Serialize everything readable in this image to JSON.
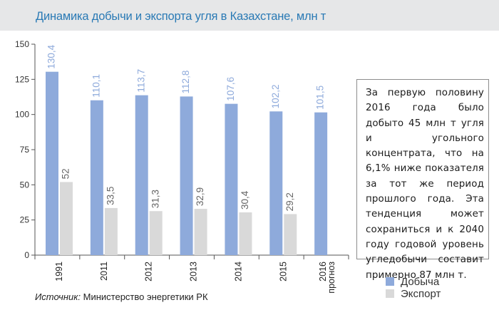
{
  "title": "Динамика добычи и экспорта угля в Казахстане, млн т",
  "note": "За первую половину 2016 года было добыто 45 млн т угля и угольного концентрата, что на 6,1% ниже показателя за тот же период прошлого года. Эта тенденция может сохраниться и к 2040 году годовой уровень угледобычи составит примерно 87 млн т.",
  "source": {
    "prefix": "Источник:",
    "text": "Министерство энергетики РК"
  },
  "legend": [
    {
      "label": "Добыча",
      "color": "#8eaadb"
    },
    {
      "label": "Экспорт",
      "color": "#d9d9d9"
    }
  ],
  "chart_data": {
    "type": "bar",
    "categories": [
      "1991",
      "2011",
      "2012",
      "2013",
      "2014",
      "2015",
      "2016\nпрогноз"
    ],
    "series": [
      {
        "name": "Добыча",
        "color": "#8eaadb",
        "label_color": "#8eaadb",
        "values": [
          130.4,
          110.1,
          113.7,
          112.8,
          107.6,
          102.2,
          101.5
        ],
        "labels": [
          "130,4",
          "110,1",
          "113,7",
          "112,8",
          "107,6",
          "102,2",
          "101,5"
        ]
      },
      {
        "name": "Экспорт",
        "color": "#d9d9d9",
        "label_color": "#666666",
        "values": [
          52,
          33.5,
          31.3,
          32.9,
          30.4,
          29.2,
          null
        ],
        "labels": [
          "52",
          "33,5",
          "31,3",
          "32,9",
          "30,4",
          "29,2",
          ""
        ]
      }
    ],
    "yticks": [
      0,
      25,
      50,
      75,
      100,
      125,
      150
    ],
    "ylim": [
      0,
      150
    ],
    "grid": false,
    "legend_position": "bottom-right"
  }
}
